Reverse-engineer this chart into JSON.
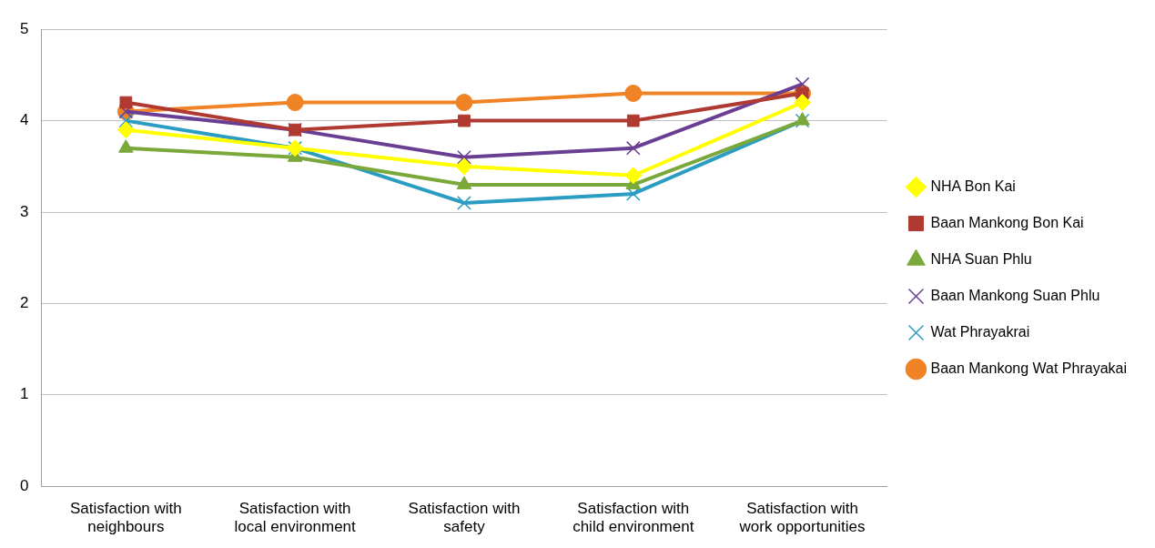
{
  "chart_data": {
    "type": "line",
    "categories": [
      "Satisfaction with neighbours",
      "Satisfaction with local environment",
      "Satisfaction with safety",
      "Satisfaction with child environment",
      "Satisfaction with work opportunities"
    ],
    "series": [
      {
        "name": "NHA Bon Kai",
        "color": "#ffff00",
        "marker": "diamond",
        "values": [
          3.9,
          3.7,
          3.5,
          3.4,
          4.2
        ]
      },
      {
        "name": "Baan Mankong Bon Kai",
        "color": "#b03a32",
        "marker": "square",
        "values": [
          4.2,
          3.9,
          4.0,
          4.0,
          4.3
        ]
      },
      {
        "name": "NHA Suan Phlu",
        "color": "#7aa83a",
        "marker": "triangle",
        "values": [
          3.7,
          3.6,
          3.3,
          3.3,
          4.0
        ]
      },
      {
        "name": "Baan Mankong Suan Phlu",
        "color": "#6a3f93",
        "marker": "cross",
        "values": [
          4.1,
          3.9,
          3.6,
          3.7,
          4.4
        ]
      },
      {
        "name": "Wat Phrayakrai",
        "color": "#2b9cc2",
        "marker": "cross",
        "values": [
          4.0,
          3.7,
          3.1,
          3.2,
          4.0
        ]
      },
      {
        "name": "Baan Mankong Wat Phrayakai",
        "color": "#f08326",
        "marker": "circle",
        "values": [
          4.1,
          4.2,
          4.2,
          4.3,
          4.3
        ]
      }
    ],
    "ylim": [
      0,
      5
    ],
    "yticks": [
      0,
      1,
      2,
      3,
      4,
      5
    ],
    "grid": "y",
    "legend": "right",
    "line_style": "solid"
  }
}
